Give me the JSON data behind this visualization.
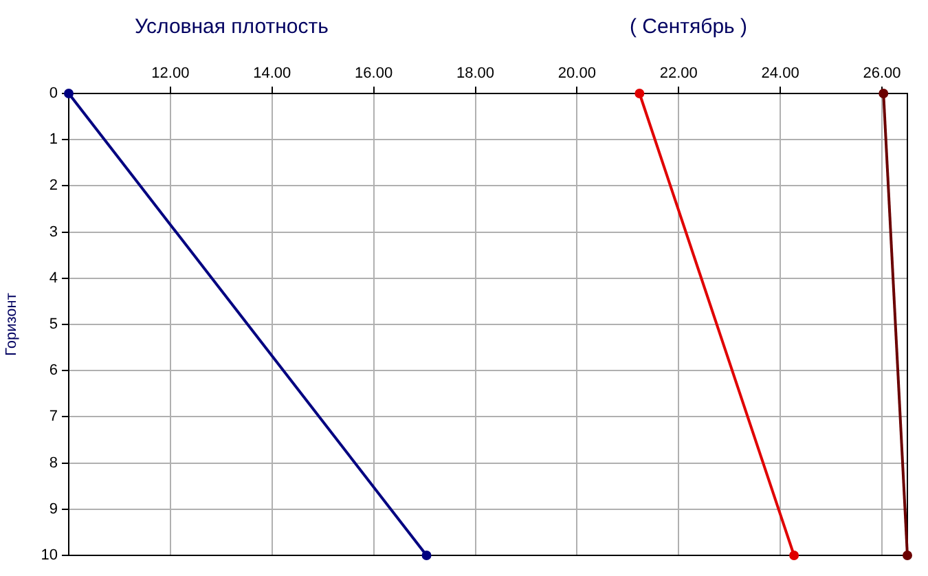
{
  "chart_data": {
    "type": "line",
    "title": "Условная плотность",
    "subtitle": "( Сентябрь )",
    "ylabel": "Горизонт",
    "series": [
      {
        "color": "#000080",
        "x": [
          10.0,
          17.04
        ],
        "values": [
          0,
          10
        ]
      },
      {
        "color": "#e00000",
        "x": [
          21.23,
          24.27
        ],
        "values": [
          0,
          10
        ]
      },
      {
        "color": "#6b0000",
        "x": [
          26.03,
          26.5
        ],
        "values": [
          0,
          10
        ]
      }
    ],
    "xlim": [
      10.0,
      26.5
    ],
    "xticks": [
      {
        "value": 12,
        "label": "12.00"
      },
      {
        "value": 14,
        "label": "14.00"
      },
      {
        "value": 16,
        "label": "16.00"
      },
      {
        "value": 18,
        "label": "18.00"
      },
      {
        "value": 20,
        "label": "20.00"
      },
      {
        "value": 22,
        "label": "22.00"
      },
      {
        "value": 24,
        "label": "24.00"
      },
      {
        "value": 26,
        "label": "26.00"
      }
    ],
    "ylim": [
      10,
      0
    ],
    "yticks": [
      0,
      1,
      2,
      3,
      4,
      5,
      6,
      7,
      8,
      9,
      10
    ],
    "grid": true,
    "marker": "circle",
    "line_style": "solid",
    "legend": false
  }
}
